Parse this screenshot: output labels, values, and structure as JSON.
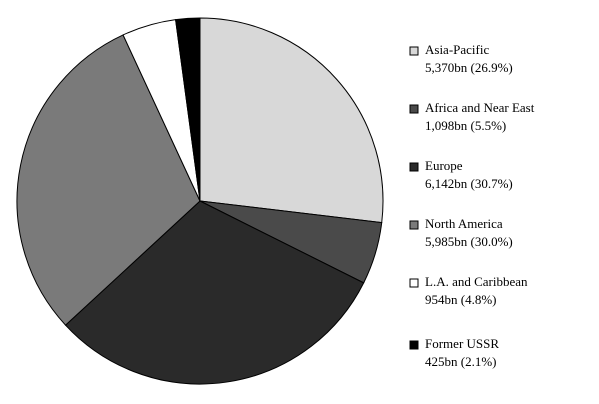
{
  "chart_data": {
    "type": "pie",
    "categories": [
      "Asia-Pacific",
      "Africa and Near East",
      "Europe",
      "North America",
      "L.A. and Caribbean",
      "Former USSR"
    ],
    "values": [
      5370,
      1098,
      6142,
      5985,
      954,
      425
    ],
    "value_labels": [
      "5,370bn (26.9%)",
      "1,098bn (5.5%)",
      "6,142bn (30.7%)",
      "5,985bn (30.0%)",
      "954bn (4.8%)",
      "425bn (2.1%)"
    ],
    "colors": [
      "#d8d8d8",
      "#4a4a4a",
      "#2a2a2a",
      "#7a7a7a",
      "#ffffff",
      "#000000"
    ]
  }
}
